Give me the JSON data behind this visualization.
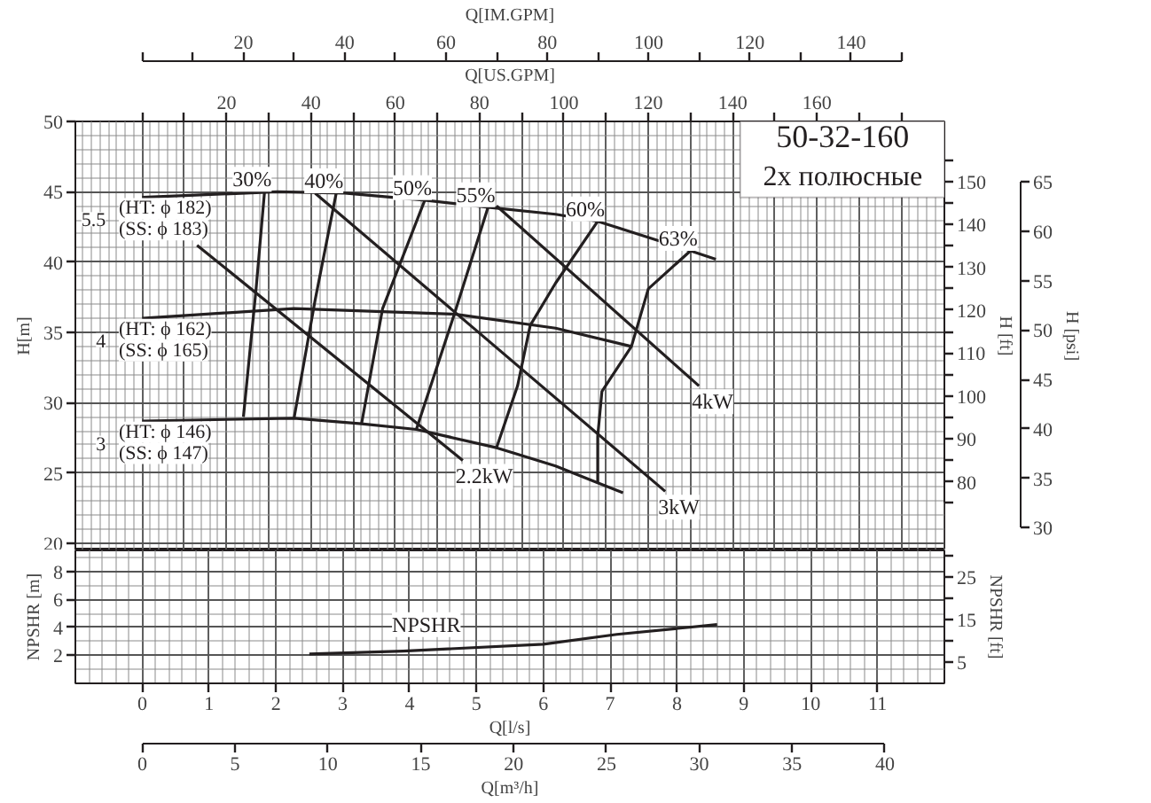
{
  "chart_data": [
    {
      "type": "line",
      "title": "50-32-160",
      "subtitle": "2х полюсные",
      "ylabel": "H[m]",
      "y2label": "H [ft]",
      "y3label": "H [psi]",
      "xlabel": "Q[US.GPM]",
      "x2label": "Q[IM.GPM]",
      "xlim": [
        -15.85,
        190.2
      ],
      "xticks": [
        {
          "value": 0,
          "label": null
        },
        {
          "value": 10,
          "label": null
        },
        20,
        {
          "value": 30,
          "label": null
        },
        40,
        {
          "value": 50,
          "label": null
        },
        60,
        {
          "value": 70,
          "label": null
        },
        80,
        {
          "value": 90,
          "label": null
        },
        100,
        {
          "value": 110,
          "label": null
        },
        120,
        {
          "value": 130,
          "label": null
        },
        140,
        {
          "value": 150,
          "label": null
        },
        160,
        {
          "value": 170,
          "label": null
        },
        {
          "value": 180,
          "label": null
        }
      ],
      "x2lim": [
        -13.2,
        158.4
      ],
      "x2ticks": [
        {
          "value": 0,
          "label": null
        },
        {
          "value": 10,
          "label": null
        },
        20,
        {
          "value": 30,
          "label": null
        },
        40,
        {
          "value": 50,
          "label": null
        },
        60,
        {
          "value": 70,
          "label": null
        },
        80,
        {
          "value": 90,
          "label": null
        },
        100,
        {
          "value": 110,
          "label": null
        },
        120,
        {
          "value": 130,
          "label": null
        },
        140,
        {
          "value": 150,
          "label": null
        }
      ],
      "ylim": [
        19.5,
        50
      ],
      "yticks": [
        20,
        25,
        30,
        35,
        40,
        45,
        50
      ],
      "y2lim": [
        64.0,
        164.0
      ],
      "y2ticks": [
        {
          "value": 75,
          "label": null
        },
        80,
        {
          "value": 85,
          "label": null
        },
        90,
        {
          "value": 95,
          "label": null
        },
        100,
        {
          "value": 105,
          "label": null
        },
        110,
        {
          "value": 115,
          "label": null
        },
        120,
        {
          "value": 125,
          "label": null
        },
        130,
        {
          "value": 135,
          "label": null
        },
        140,
        {
          "value": 145,
          "label": null
        },
        150,
        {
          "value": 155,
          "label": null
        }
      ],
      "y3lim": [
        27.7,
        71.1
      ],
      "y3ticks": [
        30,
        35,
        40,
        45,
        50,
        55,
        60,
        65
      ],
      "grid": true,
      "series": [
        {
          "name": "5.5\n(HT: ϕ 182)\n(SS: ϕ 183)",
          "color": "#231f20",
          "x": [
            0,
            32,
            48,
            67,
            82,
            98,
            108,
            130,
            136
          ],
          "values": [
            44.6,
            45.0,
            44.9,
            44.4,
            43.9,
            43.4,
            42.9,
            40.8,
            40.2
          ]
        },
        {
          "name": "4\n(HT: ϕ 162)\n(SS: ϕ 165)",
          "color": "#231f20",
          "x": [
            0,
            36,
            74,
            98,
            116
          ],
          "values": [
            36.0,
            36.7,
            36.3,
            35.3,
            34.0
          ]
        },
        {
          "name": "3\n(HT: ϕ 146)\n(SS: ϕ 147)",
          "color": "#231f20",
          "x": [
            0,
            36,
            52,
            65,
            84,
            98,
            108,
            114
          ],
          "values": [
            28.7,
            28.9,
            28.5,
            28.1,
            26.8,
            25.5,
            24.3,
            23.6
          ]
        },
        {
          "name": "30%",
          "color": "#231f20",
          "x": [
            24,
            27,
            29
          ],
          "values": [
            29.0,
            38.1,
            45.0
          ]
        },
        {
          "name": "40%",
          "color": "#231f20",
          "x": [
            36,
            41,
            46
          ],
          "values": [
            28.9,
            37.3,
            44.9
          ]
        },
        {
          "name": "50%",
          "color": "#231f20",
          "x": [
            52,
            57,
            67
          ],
          "values": [
            28.5,
            36.7,
            44.4
          ]
        },
        {
          "name": "55%",
          "color": "#231f20",
          "x": [
            65,
            74,
            82
          ],
          "values": [
            28.1,
            36.3,
            43.9
          ]
        },
        {
          "name": "60%",
          "color": "#231f20",
          "x": [
            84,
            89,
            92,
            98,
            108
          ],
          "values": [
            26.8,
            31.2,
            35.5,
            38.5,
            42.9
          ]
        },
        {
          "name": "63%",
          "color": "#231f20",
          "x": [
            108,
            108,
            109,
            116,
            120,
            130
          ],
          "values": [
            24.3,
            27.6,
            30.8,
            34.0,
            38.1,
            40.8
          ]
        },
        {
          "name": "2.2kW",
          "color": "#231f20",
          "x": [
            13,
            76
          ],
          "values": [
            41.2,
            25.9
          ]
        },
        {
          "name": "3kW",
          "color": "#231f20",
          "x": [
            41,
            124
          ],
          "values": [
            44.9,
            23.7
          ]
        },
        {
          "name": "4kW",
          "color": "#231f20",
          "x": [
            84,
            132
          ],
          "values": [
            44.0,
            31.2
          ]
        }
      ]
    },
    {
      "type": "line",
      "xlabel": "Q[l/s]",
      "x2label": "Q[m³/h]",
      "ylabel": "NPSHR [m]",
      "y2label": "NPSHR [ft]",
      "xlim": [
        -1,
        12
      ],
      "xticks": [
        0,
        1,
        2,
        3,
        4,
        5,
        6,
        7,
        8,
        9,
        10,
        11
      ],
      "x2lim": [
        -3.6,
        43.2
      ],
      "x2ticks": [
        0,
        5,
        10,
        15,
        20,
        25,
        30,
        35,
        40
      ],
      "ylim": [
        0,
        9.5
      ],
      "yticks": [
        2,
        4,
        6,
        8
      ],
      "y2lim": [
        0,
        31.2
      ],
      "y2ticks": [
        5,
        {
          "value": 10,
          "label": null
        },
        15,
        {
          "value": 20,
          "label": null
        },
        25,
        {
          "value": 30,
          "label": null
        }
      ],
      "grid": true,
      "series": [
        {
          "name": "NPSHR",
          "color": "#231f20",
          "x": [
            2.5,
            3.9,
            6.0,
            7.1,
            8.6
          ],
          "values": [
            2.1,
            2.3,
            2.8,
            3.5,
            4.2
          ]
        }
      ]
    }
  ]
}
